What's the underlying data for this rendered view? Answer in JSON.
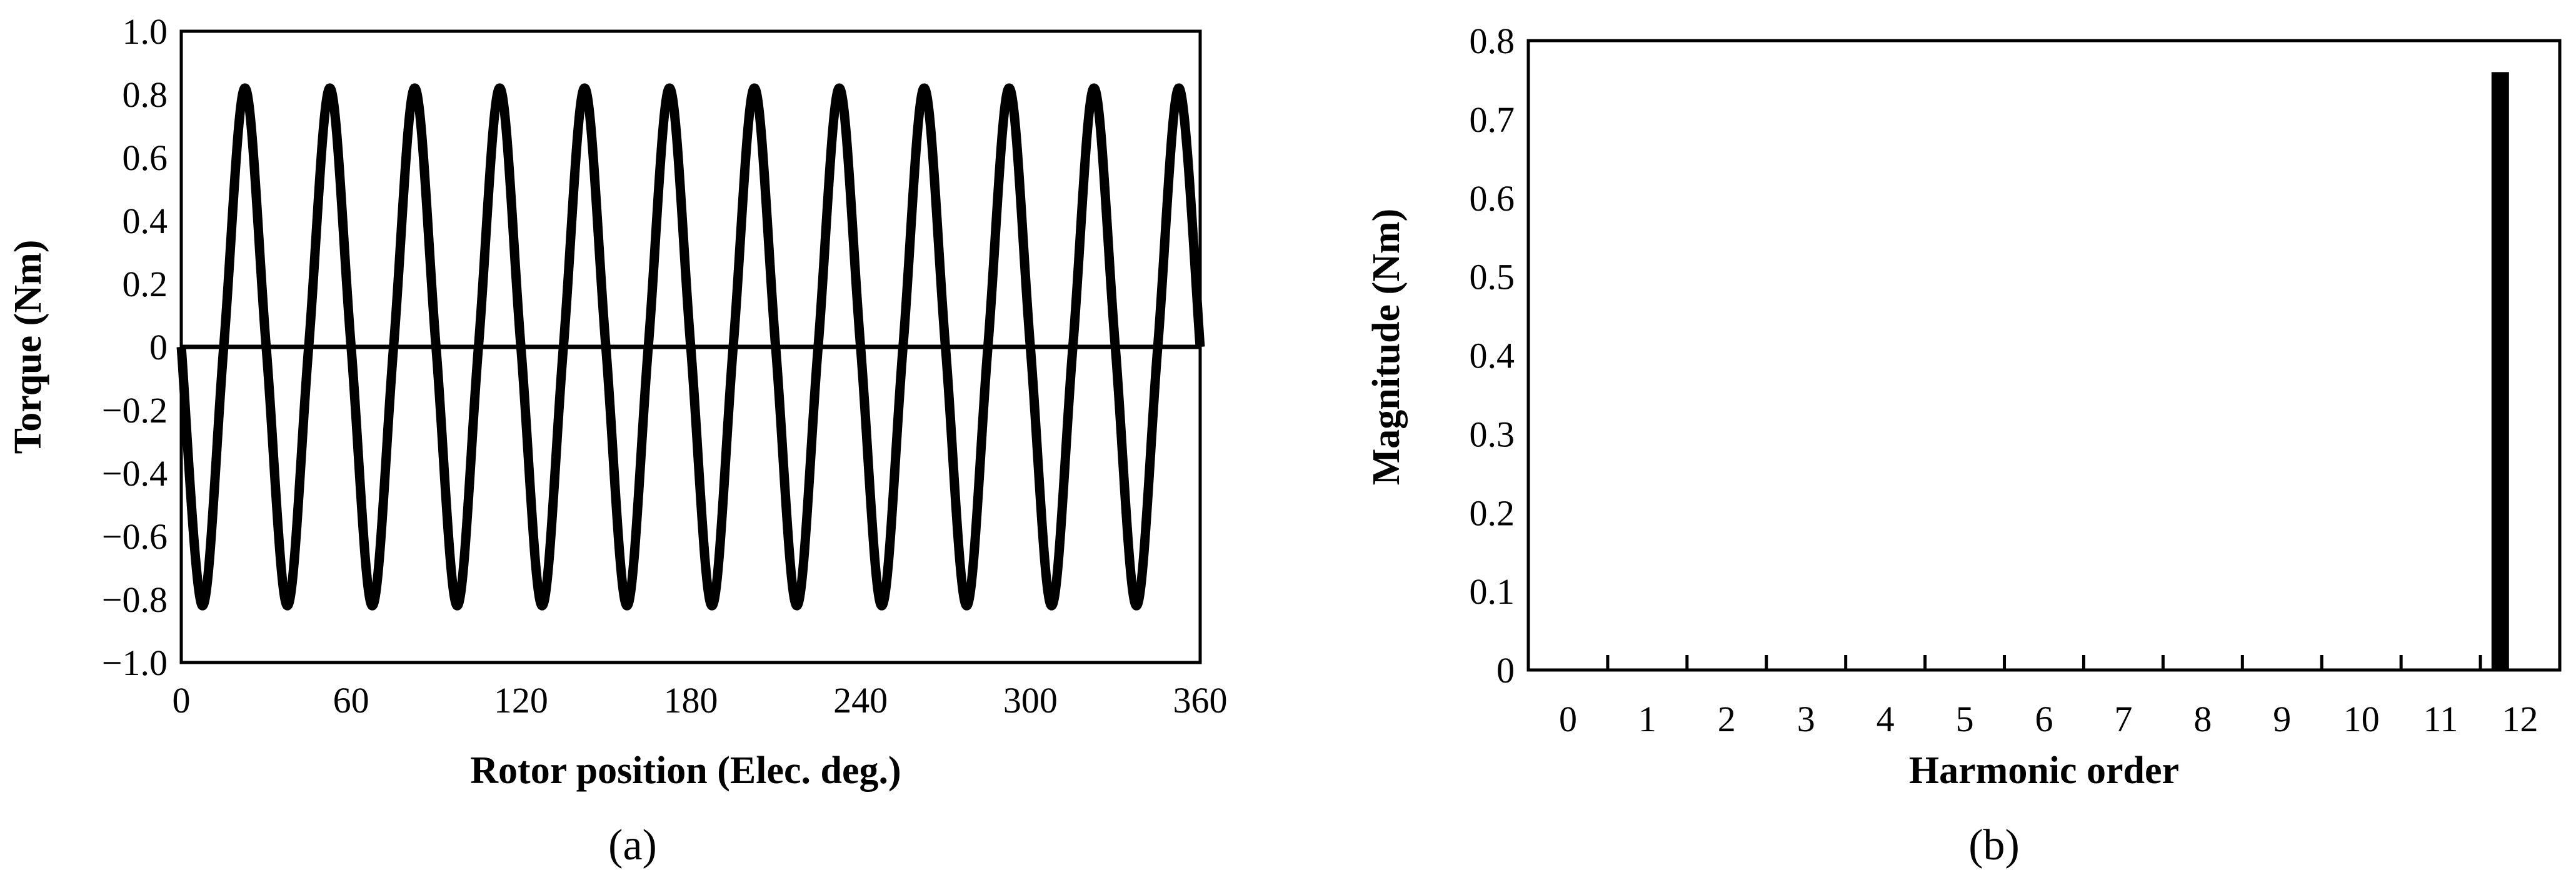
{
  "chart_data": [
    {
      "type": "line",
      "panel_label": "(a)",
      "xlabel": "Rotor position (Elec. deg.)",
      "ylabel": "Torque (Nm)",
      "xlim": [
        0,
        360
      ],
      "ylim": [
        -1.0,
        1.0
      ],
      "xticks": [
        0,
        60,
        120,
        180,
        240,
        300,
        360
      ],
      "xtick_labels": [
        "0",
        "60",
        "120",
        "180",
        "240",
        "300",
        "360"
      ],
      "yticks": [
        -1.0,
        -0.8,
        -0.6,
        -0.4,
        -0.2,
        0,
        0.2,
        0.4,
        0.6,
        0.8,
        1.0
      ],
      "ytick_labels": [
        "−1.0",
        "−0.8",
        "−0.6",
        "−0.4",
        "−0.2",
        "0",
        "0.2",
        "0.4",
        "0.6",
        "0.8",
        "1.0"
      ],
      "grid": false,
      "legend": "none",
      "series": [
        {
          "x": [
            0,
            7.5,
            15,
            22.5,
            30,
            37.5,
            45,
            52.5,
            60,
            67.5,
            75,
            82.5,
            90,
            97.5,
            105,
            112.5,
            120,
            127.5,
            135,
            142.5,
            150,
            157.5,
            165,
            172.5,
            180,
            187.5,
            195,
            202.5,
            210,
            217.5,
            225,
            232.5,
            240,
            247.5,
            255,
            262.5,
            270,
            277.5,
            285,
            292.5,
            300,
            307.5,
            315,
            322.5,
            330,
            337.5,
            345,
            352.5,
            360
          ],
          "y": [
            0,
            -0.82,
            0,
            0.82,
            0,
            -0.82,
            0,
            0.82,
            0,
            -0.82,
            0,
            0.82,
            0,
            -0.82,
            0,
            0.82,
            0,
            -0.82,
            0,
            0.82,
            0,
            -0.82,
            0,
            0.82,
            0,
            -0.82,
            0,
            0.82,
            0,
            -0.82,
            0,
            0.82,
            0,
            -0.82,
            0,
            0.82,
            0,
            -0.82,
            0,
            0.82,
            0,
            -0.82,
            0,
            0.82,
            0,
            -0.82,
            0,
            0.82,
            0
          ],
          "color": "#000000"
        }
      ],
      "zero_line": true
    },
    {
      "type": "bar",
      "panel_label": "(b)",
      "xlabel": "Harmonic order",
      "ylabel": "Magnitude (Nm)",
      "categories": [
        "0",
        "1",
        "2",
        "3",
        "4",
        "5",
        "6",
        "7",
        "8",
        "9",
        "10",
        "11",
        "12"
      ],
      "values": [
        0,
        0,
        0,
        0,
        0,
        0,
        0,
        0,
        0,
        0,
        0,
        0,
        0.76
      ],
      "ylim": [
        0,
        0.8
      ],
      "yticks": [
        0,
        0.1,
        0.2,
        0.3,
        0.4,
        0.5,
        0.6,
        0.7,
        0.8
      ],
      "ytick_labels": [
        "0",
        "0.1",
        "0.2",
        "0.3",
        "0.4",
        "0.5",
        "0.6",
        "0.7",
        "0.8"
      ],
      "grid": false,
      "legend": "none",
      "bar_color": "#000000"
    }
  ]
}
